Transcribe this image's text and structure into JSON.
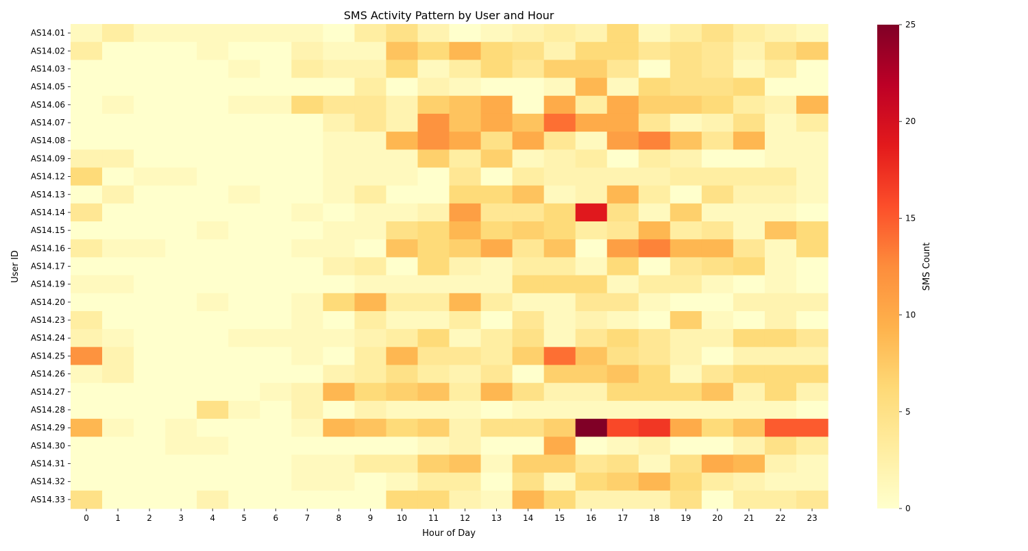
{
  "chart_data": {
    "type": "heatmap",
    "title": "SMS Activity Pattern by User and Hour",
    "xlabel": "Hour of Day",
    "ylabel": "User ID",
    "colorbar_label": "SMS Count",
    "colorbar_range": [
      0,
      25
    ],
    "colorbar_ticks": [
      "0",
      "5",
      "10",
      "15",
      "20",
      "25"
    ],
    "colormap": [
      "#ffffcc",
      "#ffeda0",
      "#fed976",
      "#feb24c",
      "#fd8d3c",
      "#fc4e2a",
      "#e31a1c",
      "#bd0026",
      "#800026"
    ],
    "x_categories": [
      "0",
      "1",
      "2",
      "3",
      "4",
      "5",
      "6",
      "7",
      "8",
      "9",
      "10",
      "11",
      "12",
      "13",
      "14",
      "15",
      "16",
      "17",
      "18",
      "19",
      "20",
      "21",
      "22",
      "23"
    ],
    "y_categories": [
      "AS14.01",
      "AS14.02",
      "AS14.03",
      "AS14.05",
      "AS14.06",
      "AS14.07",
      "AS14.08",
      "AS14.09",
      "AS14.12",
      "AS14.13",
      "AS14.14",
      "AS14.15",
      "AS14.16",
      "AS14.17",
      "AS14.19",
      "AS14.20",
      "AS14.23",
      "AS14.24",
      "AS14.25",
      "AS14.26",
      "AS14.27",
      "AS14.28",
      "AS14.29",
      "AS14.30",
      "AS14.31",
      "AS14.32",
      "AS14.33"
    ],
    "values": [
      [
        1,
        3,
        1,
        1,
        1,
        1,
        1,
        1,
        0,
        3,
        5,
        2,
        0,
        1,
        2,
        3,
        2,
        6,
        1,
        3,
        5,
        3,
        2,
        1
      ],
      [
        3,
        0,
        0,
        0,
        1,
        0,
        0,
        2,
        1,
        1,
        8,
        6,
        9,
        6,
        5,
        2,
        6,
        6,
        4,
        5,
        4,
        2,
        5,
        7
      ],
      [
        0,
        0,
        0,
        0,
        0,
        1,
        0,
        3,
        2,
        2,
        6,
        1,
        3,
        6,
        4,
        7,
        7,
        4,
        0,
        5,
        4,
        1,
        3,
        0
      ],
      [
        0,
        0,
        0,
        0,
        0,
        0,
        0,
        0,
        0,
        3,
        0,
        2,
        1,
        0,
        0,
        1,
        9,
        1,
        6,
        5,
        5,
        6,
        0,
        0
      ],
      [
        0,
        1,
        0,
        0,
        0,
        1,
        1,
        6,
        4,
        4,
        2,
        7,
        8,
        10,
        0,
        10,
        3,
        10,
        7,
        7,
        6,
        3,
        2,
        9
      ],
      [
        0,
        0,
        0,
        0,
        0,
        0,
        0,
        0,
        2,
        4,
        2,
        12,
        8,
        10,
        8,
        14,
        10,
        10,
        4,
        1,
        2,
        5,
        1,
        3
      ],
      [
        0,
        0,
        0,
        0,
        0,
        0,
        0,
        0,
        1,
        1,
        9,
        12,
        10,
        5,
        10,
        4,
        1,
        11,
        13,
        8,
        4,
        9,
        1,
        1
      ],
      [
        2,
        2,
        0,
        0,
        0,
        0,
        0,
        0,
        1,
        1,
        1,
        7,
        3,
        7,
        1,
        2,
        3,
        0,
        3,
        2,
        0,
        0,
        1,
        1
      ],
      [
        6,
        0,
        1,
        1,
        0,
        0,
        0,
        0,
        1,
        1,
        1,
        0,
        4,
        0,
        3,
        2,
        2,
        2,
        2,
        3,
        3,
        3,
        3,
        1
      ],
      [
        0,
        2,
        0,
        0,
        0,
        1,
        0,
        0,
        1,
        3,
        0,
        0,
        6,
        6,
        8,
        1,
        2,
        9,
        3,
        0,
        5,
        2,
        2,
        1
      ],
      [
        4,
        0,
        0,
        0,
        0,
        0,
        0,
        1,
        0,
        1,
        1,
        2,
        11,
        4,
        4,
        6,
        19,
        5,
        1,
        7,
        1,
        1,
        1,
        0
      ],
      [
        0,
        0,
        0,
        0,
        1,
        0,
        0,
        0,
        1,
        1,
        5,
        6,
        9,
        6,
        7,
        6,
        3,
        4,
        9,
        3,
        4,
        1,
        8,
        6
      ],
      [
        3,
        1,
        1,
        0,
        0,
        0,
        0,
        1,
        1,
        0,
        8,
        6,
        7,
        10,
        4,
        8,
        0,
        11,
        13,
        9,
        9,
        4,
        1,
        6
      ],
      [
        0,
        0,
        0,
        0,
        0,
        0,
        0,
        0,
        2,
        3,
        0,
        6,
        2,
        1,
        3,
        3,
        1,
        6,
        0,
        4,
        5,
        6,
        1,
        0
      ],
      [
        1,
        1,
        0,
        0,
        0,
        0,
        0,
        0,
        0,
        1,
        1,
        1,
        1,
        1,
        6,
        6,
        6,
        1,
        3,
        3,
        1,
        0,
        1,
        0
      ],
      [
        0,
        0,
        0,
        0,
        1,
        0,
        0,
        1,
        6,
        9,
        3,
        3,
        9,
        3,
        1,
        1,
        4,
        4,
        1,
        0,
        0,
        2,
        2,
        2
      ],
      [
        3,
        0,
        0,
        0,
        0,
        0,
        0,
        1,
        0,
        3,
        1,
        1,
        3,
        0,
        4,
        1,
        2,
        1,
        0,
        7,
        1,
        0,
        2,
        0
      ],
      [
        2,
        1,
        0,
        0,
        0,
        1,
        1,
        1,
        1,
        2,
        3,
        6,
        1,
        3,
        5,
        1,
        4,
        6,
        4,
        2,
        2,
        6,
        6,
        4
      ],
      [
        12,
        2,
        0,
        0,
        0,
        0,
        0,
        1,
        0,
        3,
        9,
        4,
        4,
        3,
        7,
        14,
        8,
        5,
        4,
        2,
        0,
        2,
        2,
        2
      ],
      [
        1,
        2,
        0,
        0,
        0,
        0,
        0,
        0,
        2,
        3,
        5,
        3,
        2,
        4,
        0,
        7,
        7,
        8,
        6,
        1,
        4,
        6,
        6,
        6
      ],
      [
        0,
        0,
        0,
        0,
        0,
        0,
        1,
        2,
        9,
        6,
        7,
        8,
        3,
        9,
        5,
        2,
        2,
        6,
        6,
        6,
        8,
        2,
        6,
        2
      ],
      [
        0,
        0,
        0,
        0,
        5,
        1,
        0,
        2,
        0,
        2,
        1,
        1,
        1,
        0,
        1,
        1,
        1,
        1,
        1,
        1,
        1,
        1,
        1,
        0
      ],
      [
        9,
        1,
        0,
        1,
        0,
        0,
        0,
        1,
        9,
        8,
        6,
        7,
        2,
        5,
        5,
        7,
        25,
        16,
        17,
        10,
        6,
        8,
        15,
        15
      ],
      [
        0,
        0,
        0,
        1,
        1,
        0,
        0,
        0,
        0,
        0,
        0,
        1,
        2,
        0,
        0,
        10,
        0,
        1,
        2,
        0,
        0,
        2,
        5,
        3
      ],
      [
        0,
        0,
        0,
        0,
        0,
        0,
        0,
        1,
        1,
        3,
        3,
        7,
        8,
        1,
        7,
        7,
        4,
        5,
        1,
        5,
        10,
        9,
        2,
        1
      ],
      [
        0,
        0,
        0,
        0,
        0,
        0,
        0,
        1,
        1,
        0,
        1,
        3,
        3,
        0,
        5,
        1,
        6,
        7,
        9,
        6,
        3,
        2,
        1,
        1
      ],
      [
        5,
        0,
        0,
        0,
        2,
        0,
        0,
        0,
        0,
        0,
        6,
        6,
        2,
        1,
        9,
        6,
        2,
        2,
        2,
        5,
        0,
        3,
        3,
        4
      ]
    ]
  }
}
